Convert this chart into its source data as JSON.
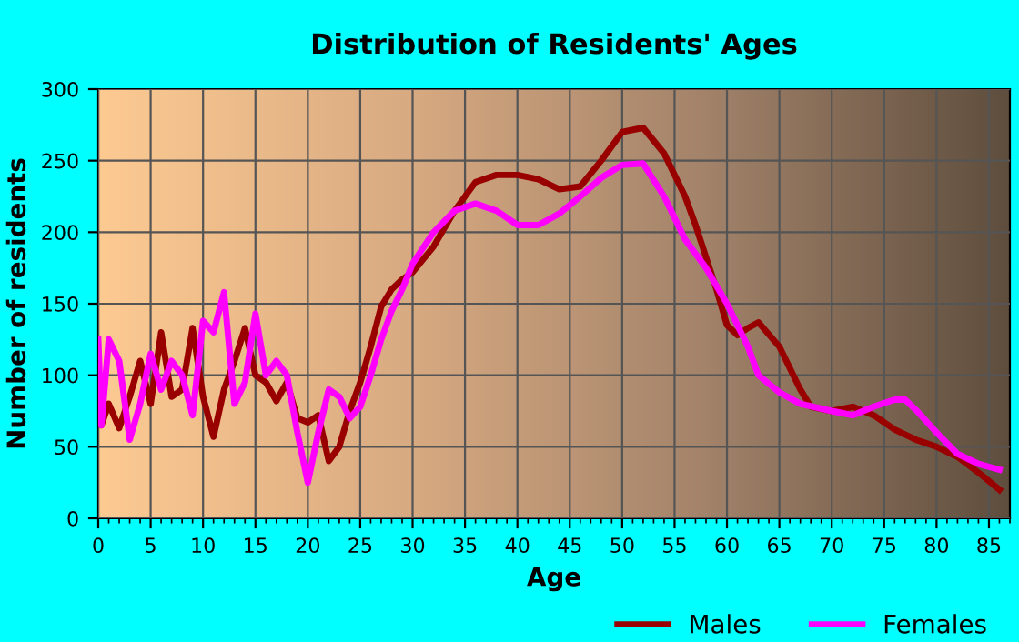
{
  "chart_data": {
    "type": "line",
    "title": "Distribution of Residents' Ages",
    "xlabel": "Age",
    "ylabel": "Number of residents",
    "series": [
      {
        "name": "Males",
        "color": "#990000",
        "x": [
          0,
          0.3,
          1,
          2,
          3,
          4,
          5,
          6,
          7,
          8,
          9,
          10,
          11,
          12,
          13,
          14,
          15,
          16,
          17,
          18,
          19,
          20,
          21,
          22,
          23,
          24,
          25,
          26,
          27,
          28,
          29,
          30,
          32,
          34,
          36,
          38,
          40,
          42,
          44,
          46,
          48,
          50,
          52,
          54,
          56,
          57,
          59,
          60,
          61,
          62,
          63,
          65,
          67,
          68,
          70,
          72,
          74,
          76,
          78,
          80,
          82,
          84,
          86
        ],
        "values": [
          85,
          65,
          80,
          63,
          85,
          110,
          80,
          130,
          85,
          90,
          133,
          85,
          57,
          90,
          110,
          133,
          100,
          95,
          82,
          95,
          70,
          67,
          72,
          40,
          50,
          75,
          95,
          120,
          148,
          160,
          167,
          172,
          190,
          215,
          235,
          240,
          240,
          237,
          230,
          232,
          250,
          270,
          273,
          255,
          225,
          205,
          160,
          135,
          128,
          133,
          137,
          120,
          90,
          78,
          75,
          78,
          72,
          62,
          55,
          50,
          43,
          32,
          20
        ]
      },
      {
        "name": "Females",
        "color": "#ff00ff",
        "x": [
          0,
          0.3,
          1,
          2,
          3,
          4,
          5,
          6,
          7,
          8,
          9,
          10,
          11,
          12,
          13,
          14,
          15,
          16,
          17,
          18,
          19,
          20,
          21,
          22,
          23,
          24,
          25,
          26,
          27,
          28,
          29,
          30,
          32,
          34,
          36,
          38,
          40,
          42,
          44,
          46,
          48,
          50,
          52,
          54,
          56,
          58,
          60,
          62,
          63,
          65,
          67,
          70,
          72,
          74,
          76,
          77,
          78,
          80,
          82,
          84,
          86
        ],
        "values": [
          125,
          65,
          125,
          110,
          55,
          80,
          115,
          90,
          110,
          100,
          72,
          138,
          130,
          158,
          80,
          95,
          143,
          100,
          110,
          100,
          60,
          25,
          60,
          90,
          85,
          70,
          78,
          100,
          125,
          145,
          160,
          178,
          200,
          215,
          220,
          215,
          205,
          205,
          213,
          225,
          238,
          247,
          248,
          225,
          195,
          175,
          150,
          120,
          100,
          88,
          80,
          75,
          72,
          78,
          83,
          83,
          76,
          60,
          45,
          38,
          34
        ]
      }
    ],
    "xlim": [
      0,
      87
    ],
    "xticks": [
      0,
      5,
      10,
      15,
      20,
      25,
      30,
      35,
      40,
      45,
      50,
      55,
      60,
      65,
      70,
      75,
      80,
      85
    ],
    "ylim": [
      0,
      300
    ],
    "yticks": [
      0,
      50,
      100,
      150,
      200,
      250,
      300
    ],
    "grid": true,
    "legend": "bottom right",
    "marker": "none",
    "line_style": "solid"
  }
}
